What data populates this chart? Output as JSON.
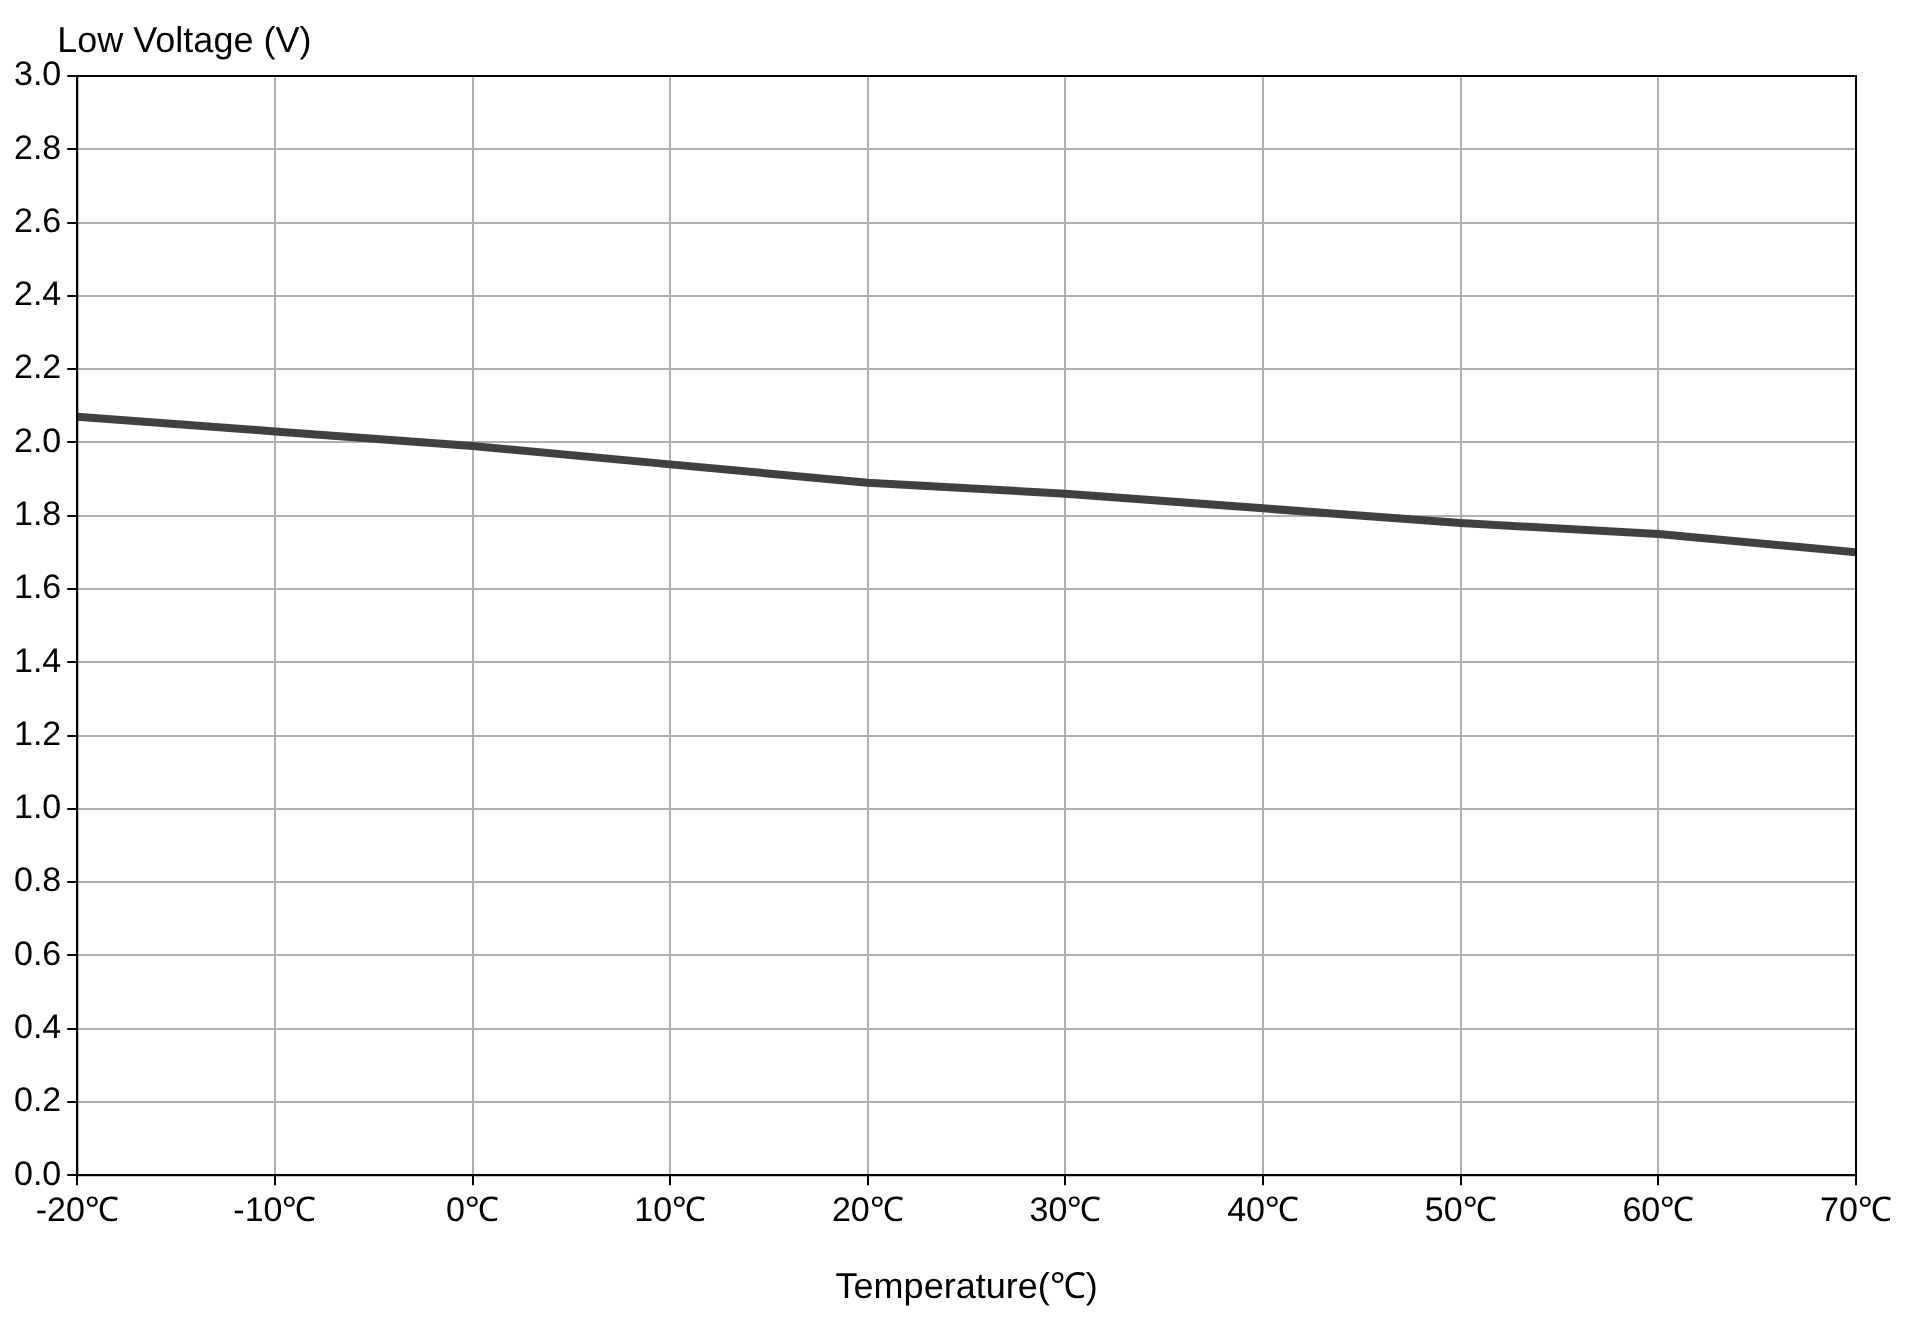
{
  "chart_data": {
    "type": "line",
    "xlabel": "Temperature(℃)",
    "ylabel": "Low Voltage (V)",
    "x": [
      -20,
      -10,
      0,
      10,
      20,
      30,
      40,
      50,
      60,
      70
    ],
    "series": [
      {
        "color": "#404040",
        "values": [
          2.07,
          2.03,
          1.99,
          1.94,
          1.89,
          1.86,
          1.82,
          1.78,
          1.75,
          1.7
        ]
      }
    ],
    "xlim": [
      -20,
      70
    ],
    "xticks": [
      {
        "value": -20,
        "label": "-20℃"
      },
      {
        "value": -10,
        "label": "-10℃"
      },
      {
        "value": 0,
        "label": "0℃"
      },
      {
        "value": 10,
        "label": "10℃"
      },
      {
        "value": 20,
        "label": "20℃"
      },
      {
        "value": 30,
        "label": "30℃"
      },
      {
        "value": 40,
        "label": "40℃"
      },
      {
        "value": 50,
        "label": "50℃"
      },
      {
        "value": 60,
        "label": "60℃"
      },
      {
        "value": 70,
        "label": "70℃"
      }
    ],
    "ylim": [
      0,
      3
    ],
    "yticks": [
      {
        "value": 0,
        "label": "0.0"
      },
      {
        "value": 0.2,
        "label": "0.2"
      },
      {
        "value": 0.4,
        "label": "0.4"
      },
      {
        "value": 0.6,
        "label": "0.6"
      },
      {
        "value": 0.8,
        "label": "0.8"
      },
      {
        "value": 1,
        "label": "1.0"
      },
      {
        "value": 1.2,
        "label": "1.2"
      },
      {
        "value": 1.4,
        "label": "1.4"
      },
      {
        "value": 1.6,
        "label": "1.6"
      },
      {
        "value": 1.8,
        "label": "1.8"
      },
      {
        "value": 2,
        "label": "2.0"
      },
      {
        "value": 2.2,
        "label": "2.2"
      },
      {
        "value": 2.4,
        "label": "2.4"
      },
      {
        "value": 2.6,
        "label": "2.6"
      },
      {
        "value": 2.8,
        "label": "2.8"
      },
      {
        "value": 3,
        "label": "3.0"
      }
    ],
    "grid": true,
    "legend": false,
    "marker": "none",
    "line_style": "solid"
  }
}
